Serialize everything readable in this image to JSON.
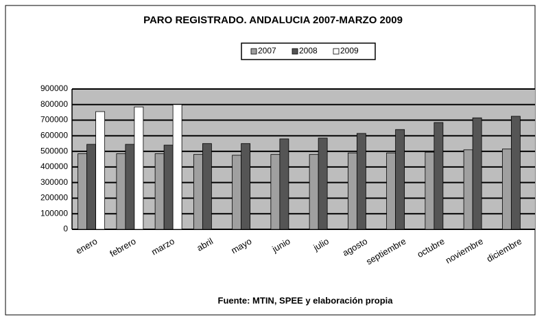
{
  "chart_data": {
    "type": "bar",
    "title": "PARO REGISTRADO. ANDALUCIA 2007-MARZO 2009",
    "source": "Fuente: MTIN,  SPEE y elaboración propia",
    "categories": [
      "enero",
      "febrero",
      "marzo",
      "abril",
      "mayo",
      "junio",
      "julio",
      "agosto",
      "septiembre",
      "octubre",
      "noviembre",
      "diciembre"
    ],
    "series": [
      {
        "name": "2007",
        "color": "#a0a0a0",
        "values": [
          485000,
          485000,
          485000,
          480000,
          475000,
          480000,
          480000,
          490000,
          490000,
          495000,
          510000,
          515000
        ]
      },
      {
        "name": "2008",
        "color": "#555555",
        "values": [
          545000,
          545000,
          540000,
          550000,
          550000,
          580000,
          585000,
          615000,
          640000,
          685000,
          715000,
          725000
        ]
      },
      {
        "name": "2009",
        "color": "#ffffff",
        "values": [
          755000,
          785000,
          800000,
          null,
          null,
          null,
          null,
          null,
          null,
          null,
          null,
          null
        ]
      }
    ],
    "ylim": [
      0,
      900000
    ],
    "yticks": [
      0,
      100000,
      200000,
      300000,
      400000,
      500000,
      600000,
      700000,
      800000,
      900000
    ],
    "grid": true,
    "legend": "top"
  }
}
